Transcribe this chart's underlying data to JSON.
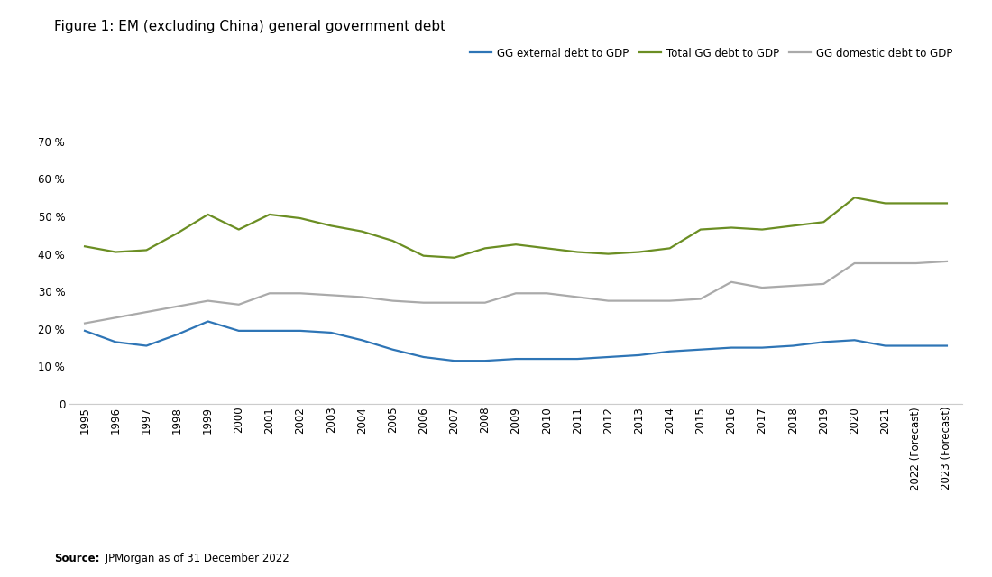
{
  "title": "Figure 1: EM (excluding China) general government debt",
  "source_bold": "Source:",
  "source_rest": " JPMorgan as of 31 December 2022",
  "years": [
    "1995",
    "1996",
    "1997",
    "1998",
    "1999",
    "2000",
    "2001",
    "2002",
    "2003",
    "2004",
    "2005",
    "2006",
    "2007",
    "2008",
    "2009",
    "2010",
    "2011",
    "2012",
    "2013",
    "2014",
    "2015",
    "2016",
    "2017",
    "2018",
    "2019",
    "2020",
    "2021",
    "2022 (Forecast)",
    "2023 (Forecast)"
  ],
  "gg_external": [
    19.5,
    16.5,
    15.5,
    18.5,
    22.0,
    19.5,
    19.5,
    19.5,
    19.0,
    17.0,
    14.5,
    12.5,
    11.5,
    11.5,
    12.0,
    12.0,
    12.0,
    12.5,
    13.0,
    14.0,
    14.5,
    15.0,
    15.0,
    15.5,
    16.5,
    17.0,
    15.5,
    15.5,
    15.5
  ],
  "gg_domestic": [
    21.5,
    23.0,
    24.5,
    26.0,
    27.5,
    26.5,
    29.5,
    29.5,
    29.0,
    28.5,
    27.5,
    27.0,
    27.0,
    27.0,
    29.5,
    29.5,
    28.5,
    27.5,
    27.5,
    27.5,
    28.0,
    32.5,
    31.0,
    31.5,
    32.0,
    37.5,
    37.5,
    37.5,
    38.0
  ],
  "gg_total": [
    42.0,
    40.5,
    41.0,
    45.5,
    50.5,
    46.5,
    50.5,
    49.5,
    47.5,
    46.0,
    43.5,
    39.5,
    39.0,
    41.5,
    42.5,
    41.5,
    40.5,
    40.0,
    40.5,
    41.5,
    46.5,
    47.0,
    46.5,
    47.5,
    48.5,
    55.0,
    53.5,
    53.5,
    53.5
  ],
  "color_external": "#2E75B6",
  "color_domestic": "#AAAAAA",
  "color_total": "#6B8E23",
  "line_width": 1.6,
  "ylim": [
    0,
    80
  ],
  "yticks": [
    0,
    10,
    20,
    30,
    40,
    50,
    60,
    70
  ],
  "legend_labels": [
    "GG external debt to GDP",
    "Total GG debt to GDP",
    "GG domestic debt to GDP"
  ],
  "background_color": "#FFFFFF",
  "title_fontsize": 11,
  "axis_fontsize": 8.5,
  "legend_fontsize": 8.5
}
